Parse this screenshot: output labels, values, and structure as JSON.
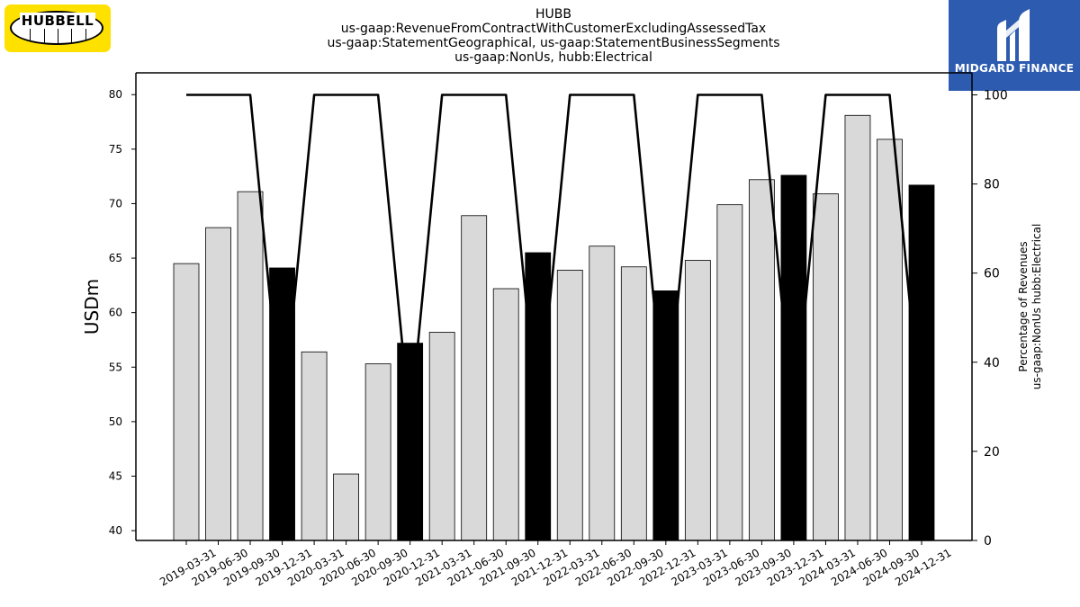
{
  "logos": {
    "left_text": "HUBBELL",
    "right_text": "MIDGARD FINANCE",
    "left_bg": "#ffe100",
    "right_bg": "#2d5bb0"
  },
  "chart_data": {
    "type": "bar",
    "title_lines": [
      "HUBB",
      "us-gaap:RevenueFromContractWithCustomerExcludingAssessedTax",
      "us-gaap:StatementGeographical, us-gaap:StatementBusinessSegments",
      "us-gaap:NonUs, hubb:Electrical"
    ],
    "ylabel": "USDm",
    "y2label_lines": [
      "Percentage of Revenues",
      "us-gaap:NonUs hubb:Electrical"
    ],
    "ylim": [
      39.1,
      82.0
    ],
    "y_ticks": [
      40,
      45,
      50,
      55,
      60,
      65,
      70,
      75,
      80
    ],
    "y2lim": [
      0,
      100
    ],
    "y2_ticks": [
      0,
      20,
      40,
      60,
      80,
      100
    ],
    "categories": [
      "2019-03-31",
      "2019-06-30",
      "2019-09-30",
      "2019-12-31",
      "2020-03-31",
      "2020-06-30",
      "2020-09-30",
      "2020-12-31",
      "2021-03-31",
      "2021-06-30",
      "2021-09-30",
      "2021-12-31",
      "2022-03-31",
      "2022-06-30",
      "2022-09-30",
      "2022-12-31",
      "2023-03-31",
      "2023-06-30",
      "2023-09-30",
      "2023-12-31",
      "2024-03-31",
      "2024-06-30",
      "2024-09-30",
      "2024-12-31"
    ],
    "values": [
      64.5,
      67.8,
      71.1,
      64.1,
      56.4,
      45.2,
      55.3,
      57.2,
      58.2,
      68.9,
      62.2,
      65.5,
      63.9,
      66.1,
      64.2,
      62.0,
      64.8,
      69.9,
      72.2,
      72.6,
      70.9,
      78.1,
      75.9,
      71.7
    ],
    "highlight": [
      false,
      false,
      false,
      true,
      false,
      false,
      false,
      true,
      false,
      false,
      false,
      true,
      false,
      false,
      false,
      true,
      false,
      false,
      false,
      true,
      false,
      false,
      false,
      true
    ],
    "line_series": {
      "values": [
        100,
        100,
        100,
        26,
        100,
        100,
        100,
        26,
        100,
        100,
        100,
        26,
        100,
        100,
        100,
        26,
        100,
        100,
        100,
        26,
        100,
        100,
        100,
        26
      ]
    },
    "colors": {
      "bar": "#d9d9d9",
      "bar_highlight": "#000000",
      "line": "#000000"
    },
    "grid": false,
    "legend": "none"
  }
}
